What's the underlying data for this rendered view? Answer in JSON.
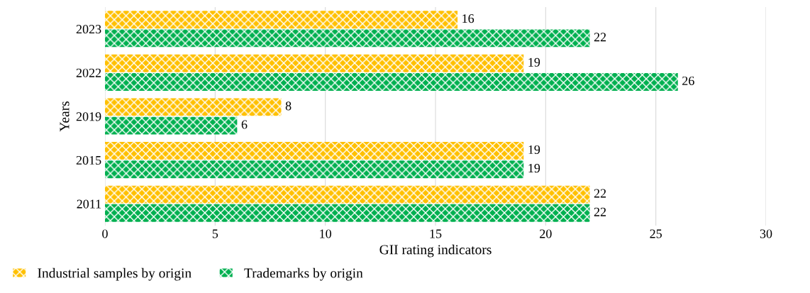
{
  "chart_data": {
    "type": "bar",
    "orientation": "horizontal",
    "xlabel": "GII rating indicators",
    "ylabel": "Years",
    "categories": [
      "2023",
      "2022",
      "2019",
      "2015",
      "2011"
    ],
    "series": [
      {
        "name": "Industrial samples by origin",
        "color": "#ffc000",
        "values": [
          16,
          19,
          8,
          19,
          22
        ]
      },
      {
        "name": "Trademarks by origin",
        "color": "#00b050",
        "values": [
          22,
          26,
          6,
          19,
          22
        ]
      }
    ],
    "xlim": [
      0,
      30
    ],
    "xticks": [
      0,
      5,
      10,
      15,
      20,
      25,
      30
    ],
    "grid": "x",
    "legend": "bottom",
    "data_labels": true
  }
}
